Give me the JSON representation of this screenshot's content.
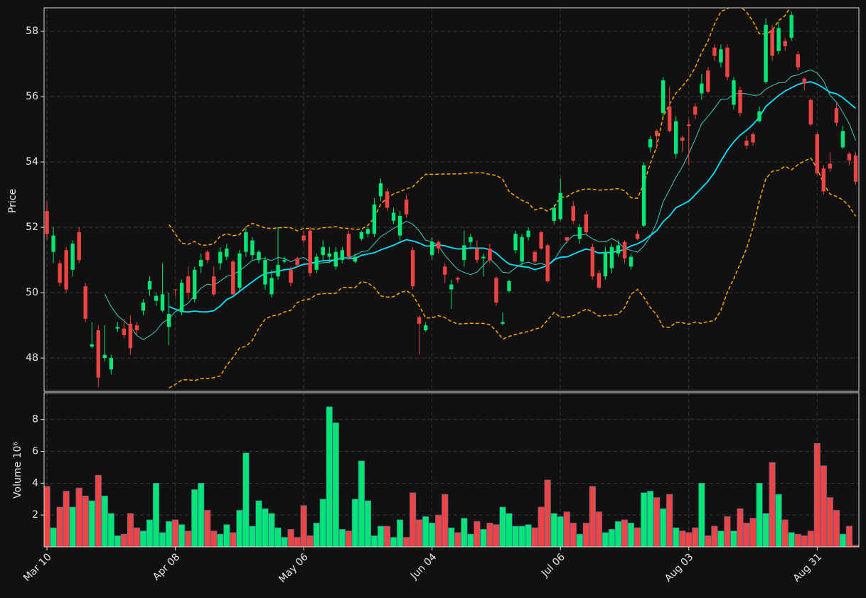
{
  "chart_data": {
    "type": "candlestick",
    "ylabel": "Price",
    "y2label": "Volume  10⁶",
    "xticks": [
      {
        "value": 0,
        "label": "Mar 10"
      },
      {
        "value": 20,
        "label": "Apr 08"
      },
      {
        "value": 40,
        "label": "May 06"
      },
      {
        "value": 60,
        "label": "Jun 04"
      },
      {
        "value": 80,
        "label": "Jul 06"
      },
      {
        "value": 100,
        "label": "Aug 03"
      },
      {
        "value": 120,
        "label": "Aug 31"
      }
    ],
    "xlim": [
      -0.45,
      126.5
    ],
    "ylim": [
      46.98,
      58.72
    ],
    "yticks": [
      48,
      50,
      52,
      54,
      56,
      58
    ],
    "y2lim": [
      0,
      9.68
    ],
    "y2ticks": [
      2,
      4,
      6,
      8
    ],
    "grid": true,
    "up_color": "#00e676",
    "down_color": "#ef4444",
    "mav": [
      10,
      20
    ],
    "mav_colors": [
      "#40e0d0",
      "#00e5ff"
    ],
    "bollinger": {
      "window": 20,
      "std": 2,
      "color": "#ffa500"
    },
    "open": [
      52.5,
      51.25,
      50.9,
      51.3,
      50.7,
      51.85,
      50.2,
      48.35,
      48.85,
      48.0,
      47.65,
      48.9,
      48.9,
      49.05,
      49.0,
      49.45,
      50.1,
      49.75,
      49.45,
      48.95,
      50.1,
      49.4,
      50.5,
      49.8,
      50.8,
      51.25,
      50.5,
      50.9,
      51.1,
      50.95,
      50.15,
      51.25,
      51.15,
      51.0,
      50.25,
      49.95,
      50.5,
      50.95,
      50.7,
      51.05,
      51.75,
      51.9,
      50.7,
      51.15,
      51.1,
      50.8,
      51.0,
      51.8,
      50.95,
      51.65,
      51.8,
      51.8,
      52.95,
      53.1,
      52.2,
      51.75,
      52.85,
      51.3,
      49.25,
      48.85,
      51.15,
      51.55,
      50.8,
      50.1,
      50.45,
      51.0,
      51.55,
      51.35,
      51.05,
      51.35,
      50.45,
      49.05,
      50.05,
      51.3,
      50.95,
      51.7,
      51.25,
      51.85,
      51.45,
      52.2,
      52.25,
      51.7,
      52.65,
      51.65,
      52.4,
      51.4,
      50.6,
      50.5,
      50.75,
      51.2,
      51.55,
      50.8,
      51.8,
      52.05,
      54.45,
      54.95,
      55.5,
      55.7,
      54.25,
      54.75,
      55.15,
      55.7,
      56.1,
      56.8,
      57.5,
      57.05,
      57.5,
      55.75,
      56.2,
      54.65,
      54.85,
      55.25,
      56.45,
      58.05,
      57.4,
      57.7,
      57.8,
      57.3,
      56.55,
      55.9,
      54.85,
      53.8,
      53.95,
      55.65,
      54.45,
      54.25,
      54.2
    ],
    "high": [
      52.8,
      52.0,
      51.0,
      51.4,
      51.6,
      52.0,
      50.3,
      49.1,
      49.0,
      49.0,
      48.1,
      49.1,
      49.2,
      49.3,
      49.1,
      49.8,
      50.5,
      50.0,
      50.9,
      50.0,
      50.1,
      50.4,
      50.8,
      50.8,
      51.2,
      51.3,
      50.8,
      51.4,
      51.5,
      51.0,
      51.3,
      52.0,
      51.7,
      51.3,
      51.1,
      50.7,
      52.0,
      51.1,
      50.8,
      51.1,
      51.9,
      52.0,
      51.2,
      51.6,
      51.4,
      51.4,
      51.4,
      51.9,
      51.2,
      51.9,
      52.0,
      52.9,
      53.5,
      53.2,
      52.6,
      52.5,
      53.0,
      51.4,
      49.3,
      49.1,
      51.7,
      51.6,
      50.9,
      50.4,
      50.5,
      51.9,
      51.8,
      51.6,
      51.2,
      51.5,
      50.5,
      49.4,
      50.4,
      51.9,
      51.8,
      52.0,
      51.3,
      51.9,
      51.5,
      52.7,
      53.5,
      51.7,
      52.8,
      52.1,
      52.5,
      51.5,
      50.7,
      51.4,
      51.5,
      51.6,
      51.6,
      51.2,
      51.9,
      54.0,
      54.8,
      55.0,
      56.6,
      56.3,
      55.4,
      54.8,
      55.3,
      55.8,
      56.7,
      56.9,
      57.6,
      57.6,
      57.6,
      56.6,
      56.3,
      54.8,
      54.9,
      55.7,
      58.4,
      58.2,
      58.3,
      57.8,
      58.6,
      57.4,
      56.6,
      55.95,
      54.9,
      53.9,
      54.3,
      55.8,
      55.1,
      54.3,
      54.3
    ],
    "low": [
      51.6,
      50.9,
      50.2,
      50.0,
      50.5,
      50.9,
      49.1,
      48.3,
      47.1,
      47.9,
      47.5,
      48.8,
      48.6,
      48.1,
      48.7,
      49.3,
      49.9,
      49.6,
      49.4,
      48.4,
      49.9,
      49.3,
      49.8,
      49.7,
      50.6,
      50.9,
      49.9,
      50.7,
      51.0,
      49.9,
      50.0,
      51.1,
      51.0,
      50.9,
      50.1,
      49.85,
      50.4,
      50.9,
      50.2,
      50.8,
      51.5,
      50.5,
      50.6,
      51.0,
      50.9,
      50.7,
      50.9,
      51.0,
      50.9,
      51.6,
      51.7,
      51.7,
      52.8,
      52.5,
      52.1,
      51.6,
      52.3,
      50.1,
      48.1,
      48.8,
      51.0,
      51.2,
      50.3,
      49.5,
      50.3,
      50.8,
      51.4,
      50.9,
      50.5,
      50.9,
      49.6,
      49.0,
      50.0,
      51.2,
      50.8,
      51.6,
      50.9,
      51.3,
      50.3,
      52.1,
      52.2,
      51.5,
      52.1,
      51.5,
      51.8,
      50.4,
      50.1,
      50.4,
      50.6,
      51.1,
      50.9,
      50.7,
      51.6,
      52.0,
      54.3,
      54.4,
      55.4,
      54.9,
      54.1,
      54.3,
      53.9,
      55.3,
      55.9,
      56.1,
      57.1,
      56.9,
      56.5,
      55.6,
      55.4,
      54.4,
      54.5,
      55.2,
      56.4,
      57.1,
      57.3,
      57.4,
      57.7,
      56.8,
      56.2,
      55.1,
      53.6,
      53.0,
      53.7,
      55.1,
      54.4,
      53.9,
      53.3
    ],
    "close": [
      51.8,
      51.75,
      50.3,
      50.1,
      51.5,
      51.0,
      49.2,
      48.42,
      47.4,
      48.1,
      48.0,
      48.95,
      48.7,
      48.3,
      48.85,
      49.7,
      50.35,
      49.9,
      49.95,
      49.35,
      50.08,
      50.3,
      50.0,
      50.7,
      51.0,
      51.0,
      49.95,
      51.25,
      51.35,
      49.95,
      51.2,
      51.85,
      51.6,
      51.25,
      51.0,
      50.45,
      50.85,
      51.0,
      50.3,
      50.85,
      51.6,
      50.6,
      51.1,
      51.4,
      51.2,
      51.25,
      51.3,
      51.1,
      51.1,
      51.85,
      51.95,
      52.7,
      53.35,
      52.6,
      52.45,
      52.35,
      52.4,
      50.2,
      49.05,
      49.0,
      51.55,
      51.35,
      50.55,
      50.25,
      50.4,
      51.45,
      51.7,
      51.0,
      51.1,
      51.0,
      49.7,
      49.1,
      50.35,
      51.8,
      51.7,
      51.9,
      50.95,
      51.35,
      50.35,
      52.6,
      53.05,
      51.6,
      52.2,
      52.0,
      51.85,
      50.5,
      50.15,
      51.25,
      51.4,
      51.45,
      51.05,
      51.1,
      51.65,
      53.9,
      54.7,
      54.8,
      56.5,
      54.95,
      55.25,
      54.65,
      55.1,
      55.45,
      56.4,
      56.15,
      57.25,
      57.45,
      56.6,
      56.5,
      55.5,
      54.5,
      54.6,
      55.55,
      58.2,
      57.25,
      58.1,
      57.55,
      58.5,
      56.9,
      56.4,
      55.15,
      53.65,
      53.1,
      53.8,
      55.2,
      54.95,
      54.05,
      53.4
    ],
    "volume": [
      3.8,
      1.2,
      2.5,
      3.5,
      2.5,
      3.7,
      3.2,
      2.9,
      4.5,
      3.2,
      2.1,
      0.7,
      0.8,
      2.1,
      1.2,
      1.0,
      1.7,
      4.0,
      0.9,
      1.6,
      1.7,
      1.4,
      1.0,
      3.6,
      4.0,
      2.3,
      1.0,
      0.8,
      1.4,
      0.9,
      2.3,
      5.9,
      1.3,
      2.9,
      2.4,
      2.1,
      1.2,
      0.6,
      1.1,
      0.6,
      2.6,
      0.7,
      1.5,
      3.0,
      8.8,
      7.8,
      1.1,
      1.0,
      3.0,
      5.4,
      2.9,
      0.7,
      1.3,
      1.3,
      0.6,
      1.7,
      0.6,
      3.4,
      1.7,
      1.9,
      1.5,
      2.0,
      3.3,
      1.2,
      0.9,
      1.8,
      0.8,
      1.6,
      1.1,
      1.5,
      1.4,
      2.5,
      2.1,
      1.3,
      1.3,
      1.4,
      1.2,
      2.5,
      4.2,
      2.1,
      1.9,
      2.2,
      1.5,
      0.8,
      1.5,
      3.8,
      2.2,
      0.9,
      1.1,
      1.6,
      1.7,
      1.5,
      1.2,
      3.4,
      3.5,
      3.1,
      2.4,
      3.3,
      1.2,
      1.0,
      0.9,
      1.2,
      4.0,
      0.7,
      1.3,
      1.0,
      1.9,
      1.0,
      2.4,
      1.5,
      1.8,
      4.0,
      2.1,
      5.3,
      3.3,
      1.7,
      0.9,
      0.8,
      0.7,
      1.0,
      6.5,
      5.1,
      3.1,
      2.3,
      0.8,
      1.3,
      0.1
    ]
  }
}
